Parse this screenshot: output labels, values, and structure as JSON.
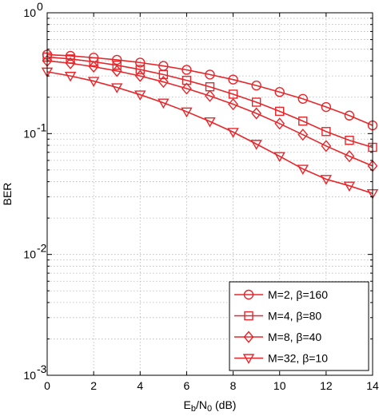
{
  "chart_data": {
    "type": "line",
    "title": "",
    "xlabel_main": "E",
    "xlabel_sub1": "b",
    "xlabel_mid": "/N",
    "xlabel_sub2": "0",
    "xlabel_tail": " (dB)",
    "ylabel": "BER",
    "xlim": [
      0,
      14
    ],
    "ylim": [
      0.001,
      1
    ],
    "y_scale": "log",
    "grid": true,
    "x_ticks": [
      0,
      2,
      4,
      6,
      8,
      10,
      12,
      14
    ],
    "x_tick_labels": [
      "0",
      "2",
      "4",
      "6",
      "8",
      "10",
      "12",
      "14"
    ],
    "y_ticks": [
      0.001,
      0.01,
      0.1,
      1
    ],
    "y_tick_labels": [
      {
        "base": "10",
        "exp": "-3"
      },
      {
        "base": "10",
        "exp": "-2"
      },
      {
        "base": "10",
        "exp": "-1"
      },
      {
        "base": "10",
        "exp": "0"
      }
    ],
    "legend_position": "bottom-right",
    "series_color": "#e8262a",
    "x": [
      0,
      1,
      2,
      3,
      4,
      5,
      6,
      7,
      8,
      9,
      10,
      11,
      12,
      13,
      14
    ],
    "series": [
      {
        "name": "M=2, β=160",
        "marker": "circle",
        "values": [
          0.45,
          0.44,
          0.425,
          0.408,
          0.387,
          0.363,
          0.337,
          0.308,
          0.28,
          0.25,
          0.221,
          0.194,
          0.166,
          0.141,
          0.117
        ]
      },
      {
        "name": "M=4, β=80",
        "marker": "square",
        "values": [
          0.43,
          0.415,
          0.393,
          0.368,
          0.339,
          0.308,
          0.276,
          0.244,
          0.212,
          0.182,
          0.153,
          0.127,
          0.104,
          0.088,
          0.077
        ]
      },
      {
        "name": "M=8, β=40",
        "marker": "diamond",
        "values": [
          0.4,
          0.382,
          0.358,
          0.33,
          0.3,
          0.268,
          0.236,
          0.205,
          0.175,
          0.147,
          0.121,
          0.098,
          0.079,
          0.065,
          0.054
        ]
      },
      {
        "name": "M=32, β=10",
        "marker": "triangle-down",
        "values": [
          0.325,
          0.3,
          0.272,
          0.241,
          0.21,
          0.18,
          0.152,
          0.126,
          0.103,
          0.082,
          0.065,
          0.051,
          0.042,
          0.037,
          0.032
        ]
      }
    ]
  }
}
